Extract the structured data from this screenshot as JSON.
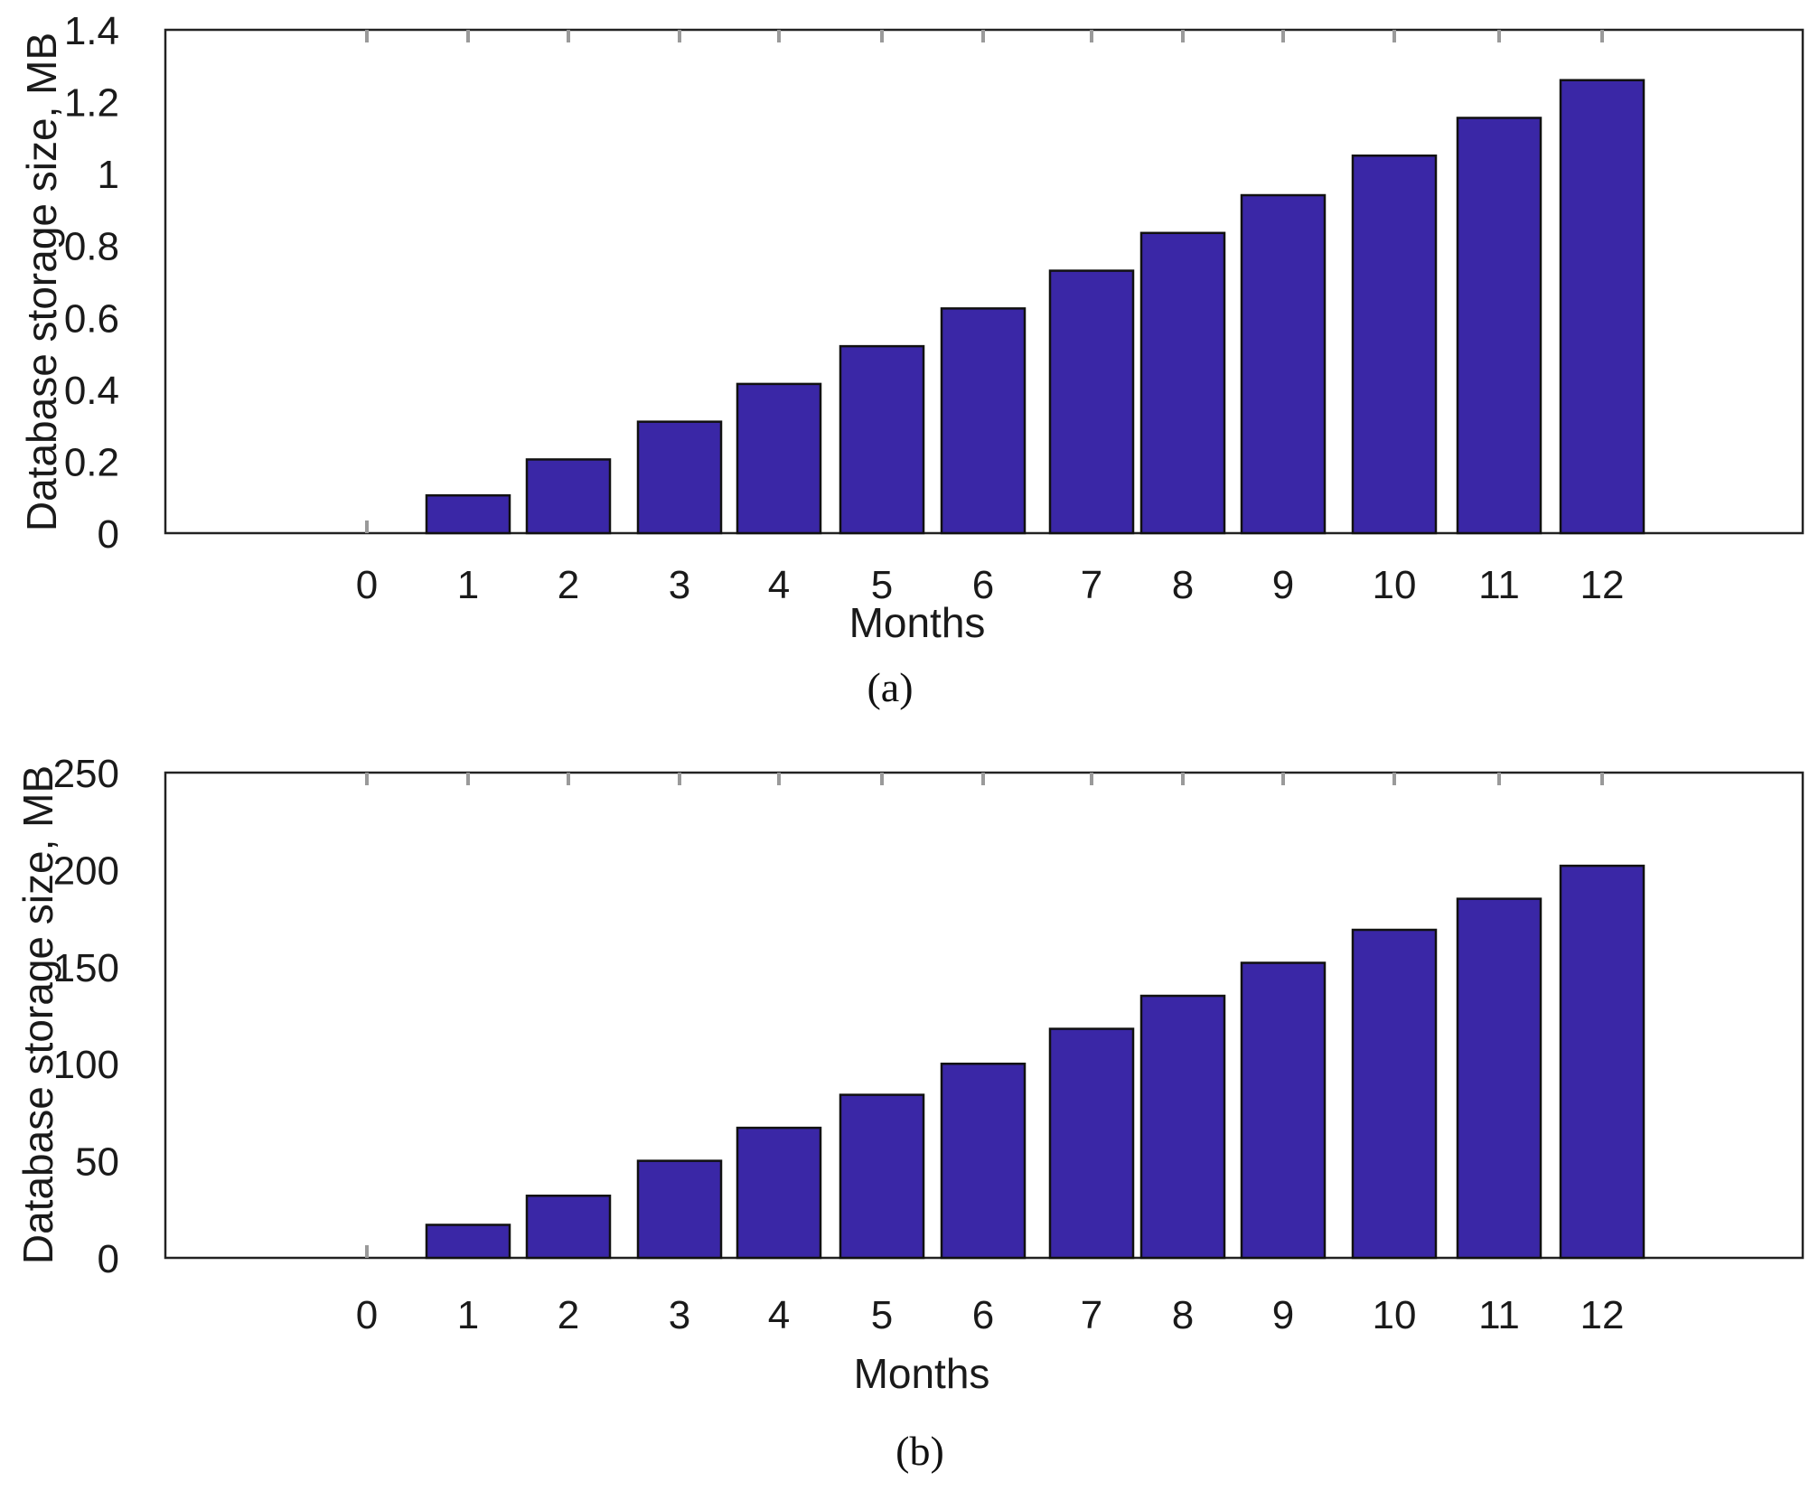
{
  "chart_data": [
    {
      "id": "a",
      "type": "bar",
      "caption": "(a)",
      "xlabel": "Months",
      "ylabel": "Database storage size, MB",
      "categories": [
        "0",
        "1",
        "2",
        "3",
        "4",
        "5",
        "6",
        "7",
        "8",
        "9",
        "10",
        "11",
        "12"
      ],
      "values": [
        0,
        0.105,
        0.205,
        0.31,
        0.415,
        0.52,
        0.625,
        0.73,
        0.835,
        0.94,
        1.05,
        1.155,
        1.26
      ],
      "ylim": [
        0,
        1.4
      ],
      "yticks": [
        "0",
        "0.2",
        "0.4",
        "0.6",
        "0.8",
        "1",
        "1.2",
        "1.4"
      ],
      "grid": false,
      "bar_color": "#3a27a6"
    },
    {
      "id": "b",
      "type": "bar",
      "caption": "(b)",
      "xlabel": "Months",
      "ylabel": "Database storage size, MB",
      "categories": [
        "0",
        "1",
        "2",
        "3",
        "4",
        "5",
        "6",
        "7",
        "8",
        "9",
        "10",
        "11",
        "12"
      ],
      "values": [
        0,
        17,
        32,
        50,
        67,
        84,
        100,
        118,
        135,
        152,
        169,
        185,
        202
      ],
      "ylim": [
        0,
        250
      ],
      "yticks": [
        "0",
        "50",
        "100",
        "150",
        "200",
        "250"
      ],
      "grid": false,
      "bar_color": "#3a27a6"
    }
  ]
}
